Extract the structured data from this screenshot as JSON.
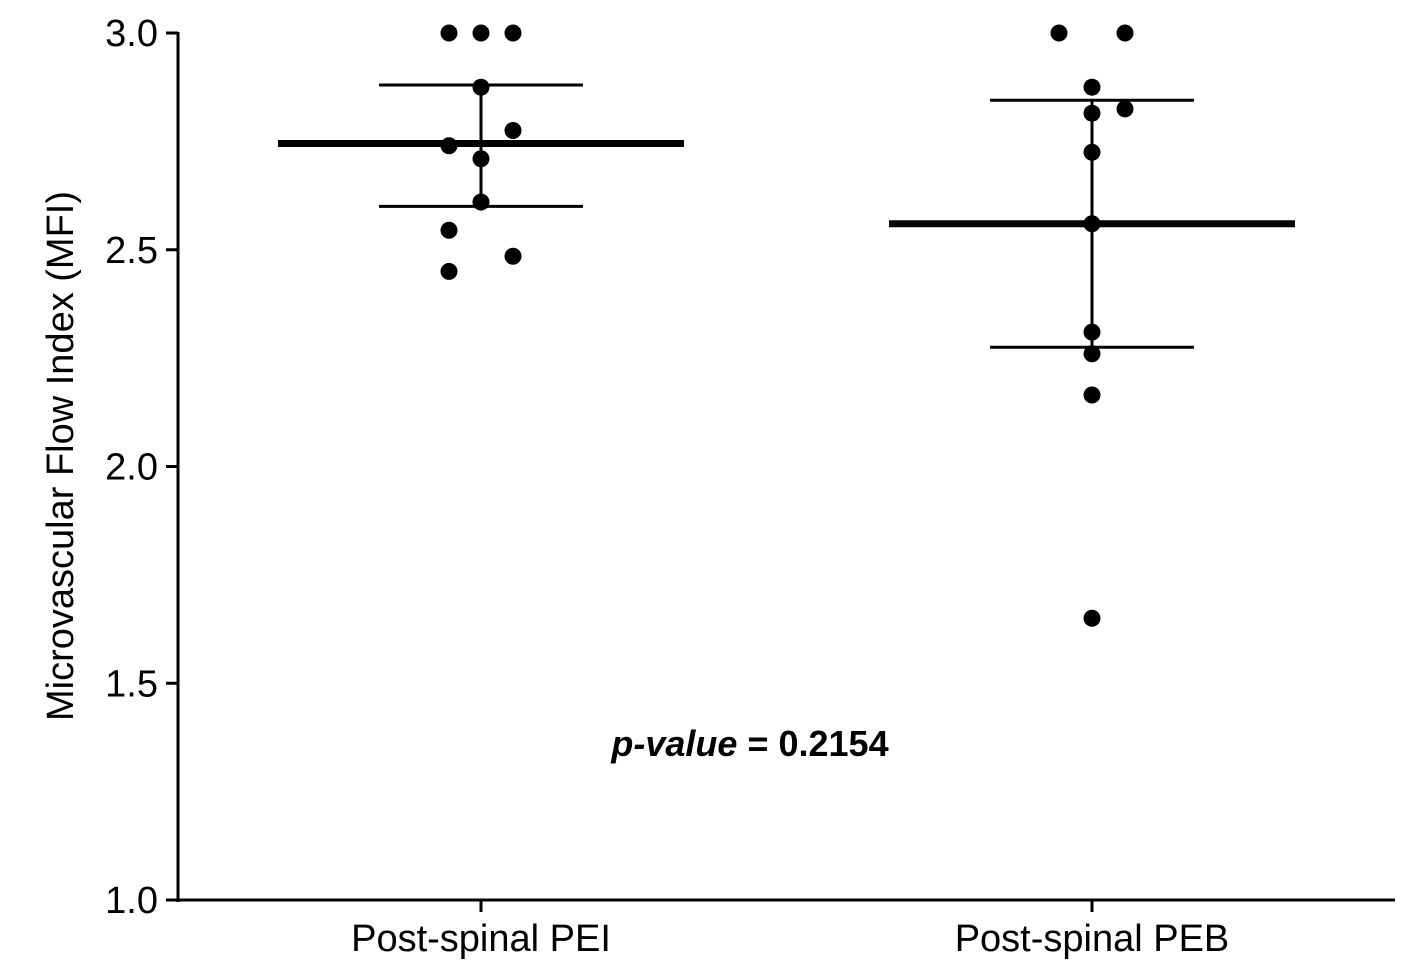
{
  "chart_data": {
    "type": "scatter",
    "title": "",
    "xlabel": "",
    "ylabel": "Microvascular Flow Index (MFI)",
    "ylim": [
      1.0,
      3.0
    ],
    "yticks": [
      "1.0",
      "1.5",
      "2.0",
      "2.5",
      "3.0"
    ],
    "ytick_values": [
      1.0,
      1.5,
      2.0,
      2.5,
      3.0
    ],
    "categories": [
      "Post-spinal PEI",
      "Post-spinal PEB"
    ],
    "grid": false,
    "legend": "none",
    "groups": [
      {
        "category": "Post-spinal PEI",
        "points": [
          3.0,
          3.0,
          3.0,
          2.875,
          2.775,
          2.74,
          2.71,
          2.61,
          2.545,
          2.485,
          2.45
        ],
        "mean": 2.745,
        "sd_upper": 2.88,
        "sd_lower": 2.6
      },
      {
        "category": "Post-spinal PEB",
        "points": [
          3.0,
          3.0,
          2.875,
          2.825,
          2.815,
          2.725,
          2.56,
          2.31,
          2.26,
          2.165,
          1.65
        ],
        "mean": 2.56,
        "sd_upper": 2.845,
        "sd_lower": 2.275
      }
    ],
    "annotation": {
      "italic_part": "p-value",
      "rest": " = 0.2154"
    },
    "colors": {
      "marks": "#000000",
      "background": "#ffffff"
    }
  }
}
